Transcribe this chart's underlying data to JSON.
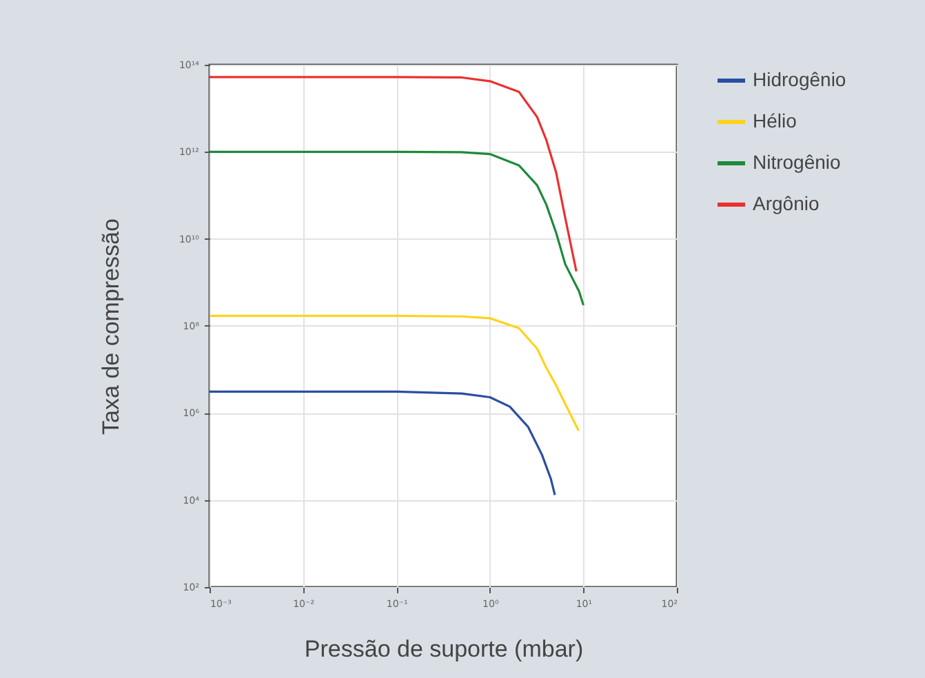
{
  "chart_data": {
    "type": "line",
    "xlabel": "Pressão de suporte (mbar)",
    "ylabel": "Taxa de compressão",
    "log": "xy",
    "grid": true,
    "legend": "right",
    "marker": "none",
    "line_style": "solid",
    "xlim": [
      0.001,
      100
    ],
    "ylim": [
      100,
      100000000000000
    ],
    "xticks": [
      {
        "value": 0.001,
        "label": "10⁻³"
      },
      {
        "value": 0.01,
        "label": "10⁻²"
      },
      {
        "value": 0.1,
        "label": "10⁻¹"
      },
      {
        "value": 1,
        "label": "10⁰"
      },
      {
        "value": 10,
        "label": "10¹"
      },
      {
        "value": 100,
        "label": "10²"
      }
    ],
    "yticks": [
      {
        "value": 100,
        "label": "10²"
      },
      {
        "value": 10000,
        "label": "10⁴"
      },
      {
        "value": 1000000,
        "label": "10⁶"
      },
      {
        "value": 100000000,
        "label": "10⁸"
      },
      {
        "value": 10000000000,
        "label": "10¹⁰"
      },
      {
        "value": 1000000000000,
        "label": "10¹²"
      },
      {
        "value": 100000000000000,
        "label": "10¹⁴"
      }
    ],
    "series": [
      {
        "name": "Hidrogênio",
        "color": "#2b4ea2",
        "x": [
          0.001,
          0.1,
          0.5,
          1,
          1.63,
          2.56,
          3.6,
          4.5,
          4.95
        ],
        "values": [
          3100000.0,
          3100000.0,
          2800000.0,
          2300000.0,
          1400000.0,
          480000.0,
          110000.0,
          30000.0,
          13000.0
        ]
      },
      {
        "name": "Hélio",
        "color": "#ffd21f",
        "x": [
          0.001,
          0.1,
          0.5,
          1,
          2.04,
          3.2,
          4,
          5.1,
          6.4,
          8.9
        ],
        "values": [
          170000000.0,
          170000000.0,
          165000000.0,
          150000000.0,
          89000000.0,
          30000000.0,
          11000000.0,
          4300000.0,
          1600000.0,
          390000.0
        ]
      },
      {
        "name": "Nitrogênio",
        "color": "#1e8a3c",
        "x": [
          0.001,
          0.1,
          0.5,
          1,
          2.04,
          3.2,
          4,
          5.1,
          6.4,
          9,
          10
        ],
        "values": [
          1000000000000.0,
          1000000000000.0,
          980000000000.0,
          890000000000.0,
          490000000000.0,
          170000000000.0,
          62000000000.0,
          14000000000.0,
          2600000000.0,
          620000000.0,
          300000000.0
        ]
      },
      {
        "name": "Argônio",
        "color": "#e8312f",
        "x": [
          0.001,
          0.1,
          0.5,
          1,
          2.04,
          3.2,
          4,
          5.1,
          6.4,
          8.4
        ],
        "values": [
          52000000000000.0,
          52000000000000.0,
          51000000000000.0,
          42000000000000.0,
          24000000000000.0,
          6300000000000.0,
          1900000000000.0,
          340000000000.0,
          30000000000.0,
          1800000000.0
        ]
      }
    ]
  }
}
